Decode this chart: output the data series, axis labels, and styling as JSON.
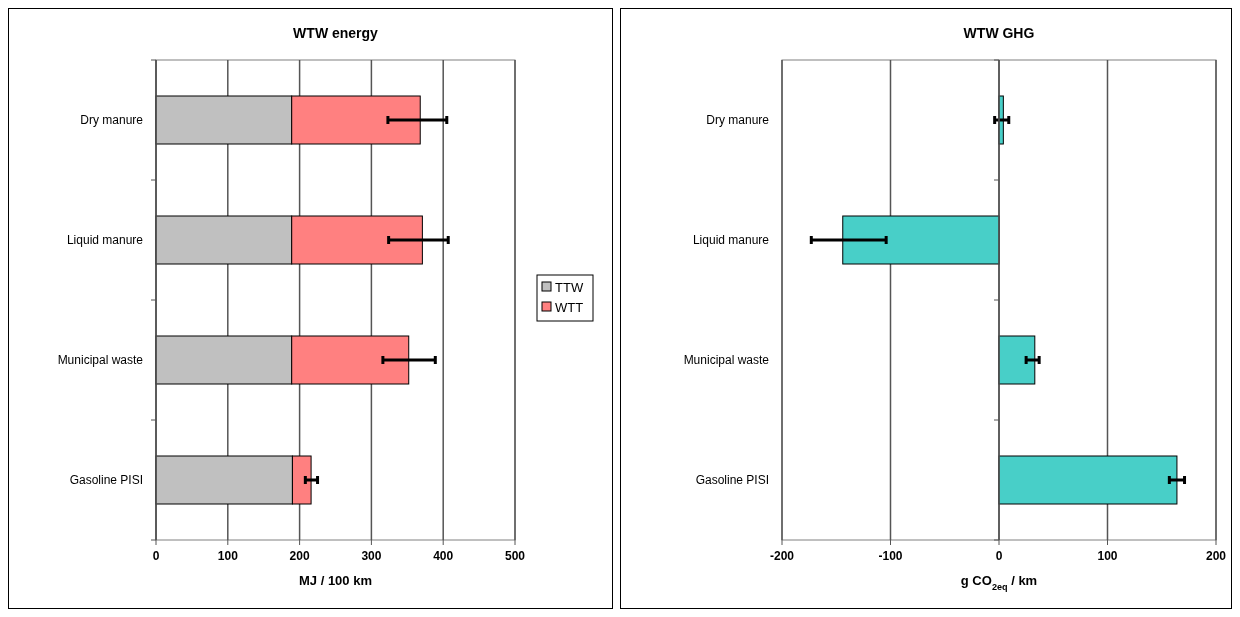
{
  "chart_data": [
    {
      "type": "bar",
      "orientation": "horizontal",
      "stacked": true,
      "title": "WTW energy",
      "xlabel": "MJ / 100 km",
      "categories": [
        "Dry manure",
        "Liquid manure",
        "Municipal waste",
        "Gasoline PISI"
      ],
      "series": [
        {
          "name": "TTW",
          "color": "#c0c0c0",
          "values": [
            189,
            189,
            189,
            190
          ]
        },
        {
          "name": "WTT",
          "color": "#ff8080",
          "values": [
            179,
            182,
            163,
            26
          ],
          "errors": [
            [
              323,
              405
            ],
            [
              324,
              407
            ],
            [
              316,
              389
            ],
            [
              208,
              225
            ]
          ]
        }
      ],
      "xlim": [
        0,
        500
      ],
      "xticks": [
        0,
        100,
        200,
        300,
        400,
        500
      ],
      "grid": "x",
      "legend": "right"
    },
    {
      "type": "bar",
      "orientation": "horizontal",
      "title": "WTW GHG",
      "xlabel": "g CO$_{2eq}$ / km",
      "categories": [
        "Dry manure",
        "Liquid manure",
        "Municipal waste",
        "Gasoline PISI"
      ],
      "values": [
        4,
        -144,
        33,
        164
      ],
      "errors": [
        [
          -4,
          9
        ],
        [
          -173,
          -104
        ],
        [
          25,
          37
        ],
        [
          157,
          171
        ]
      ],
      "color": "#48cfc8",
      "xlim": [
        -200,
        200
      ],
      "xticks": [
        -200,
        -100,
        0,
        100,
        200
      ],
      "grid": "x"
    }
  ]
}
